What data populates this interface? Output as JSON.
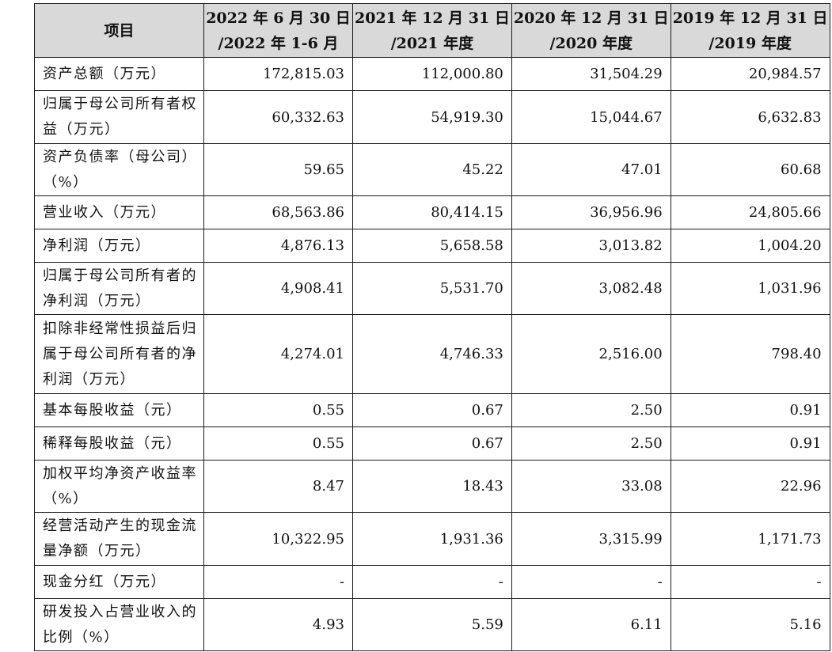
{
  "table": {
    "header": {
      "item": "项目",
      "periods": [
        {
          "line1": "2022 年 6 月 30 日",
          "line2": "/2022 年 1-6 月"
        },
        {
          "line1": "2021 年 12 月 31 日",
          "line2": "/2021 年度"
        },
        {
          "line1": "2020 年 12 月 31 日",
          "line2": "/2020 年度"
        },
        {
          "line1": "2019 年 12 月 31 日",
          "line2": "/2019 年度"
        }
      ]
    },
    "rows": [
      {
        "label": "资产总额（万元）",
        "values": [
          "172,815.03",
          "112,000.80",
          "31,504.29",
          "20,984.57"
        ]
      },
      {
        "label": "归属于母公司所有者权益（万元）",
        "values": [
          "60,332.63",
          "54,919.30",
          "15,044.67",
          "6,632.83"
        ]
      },
      {
        "label": "资产负债率（母公司）（%）",
        "values": [
          "59.65",
          "45.22",
          "47.01",
          "60.68"
        ]
      },
      {
        "label": "营业收入（万元）",
        "values": [
          "68,563.86",
          "80,414.15",
          "36,956.96",
          "24,805.66"
        ]
      },
      {
        "label": "净利润（万元）",
        "values": [
          "4,876.13",
          "5,658.58",
          "3,013.82",
          "1,004.20"
        ]
      },
      {
        "label": "归属于母公司所有者的净利润（万元）",
        "values": [
          "4,908.41",
          "5,531.70",
          "3,082.48",
          "1,031.96"
        ]
      },
      {
        "label": "扣除非经常性损益后归属于母公司所有者的净利润（万元）",
        "values": [
          "4,274.01",
          "4,746.33",
          "2,516.00",
          "798.40"
        ]
      },
      {
        "label": "基本每股收益（元）",
        "values": [
          "0.55",
          "0.67",
          "2.50",
          "0.91"
        ]
      },
      {
        "label": "稀释每股收益（元）",
        "values": [
          "0.55",
          "0.67",
          "2.50",
          "0.91"
        ]
      },
      {
        "label": "加权平均净资产收益率（%）",
        "values": [
          "8.47",
          "18.43",
          "33.08",
          "22.96"
        ]
      },
      {
        "label": "经营活动产生的现金流量净额（万元）",
        "values": [
          "10,322.95",
          "1,931.36",
          "3,315.99",
          "1,171.73"
        ]
      },
      {
        "label": "现金分红（万元）",
        "values": [
          "-",
          "-",
          "-",
          "-"
        ]
      },
      {
        "label": "研发投入占营业收入的比例（%）",
        "values": [
          "4.93",
          "5.59",
          "6.11",
          "5.16"
        ]
      }
    ]
  }
}
